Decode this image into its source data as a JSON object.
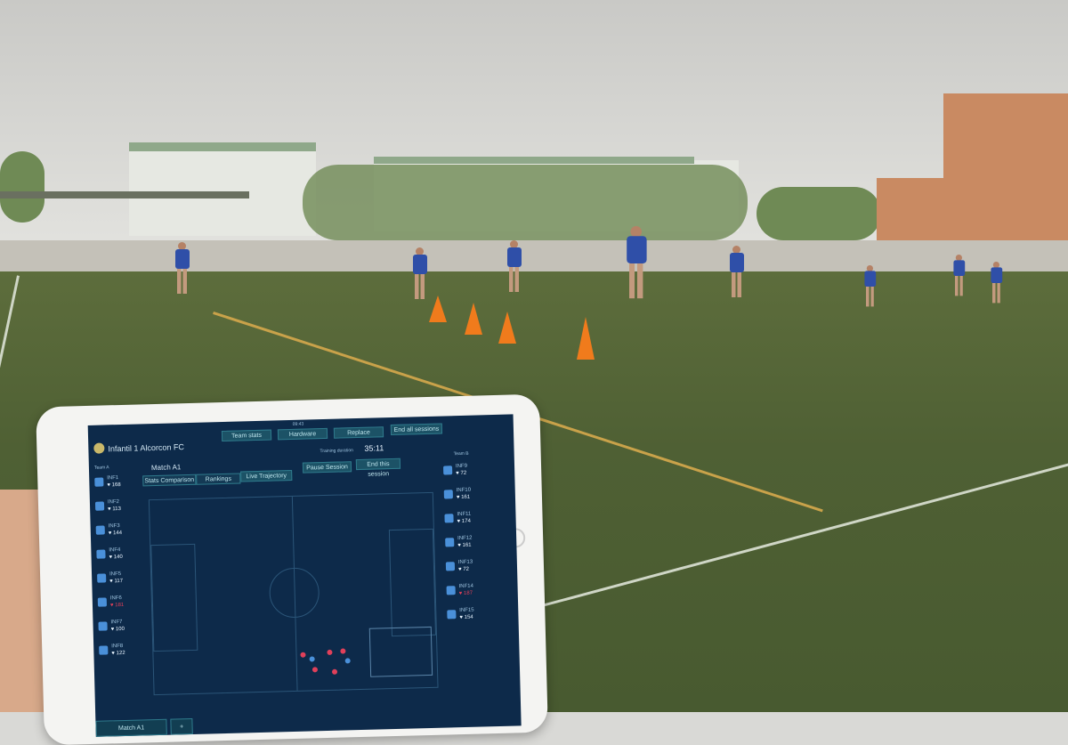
{
  "app": {
    "status_time": "09:43",
    "club": "Infantil 1 Alcorcon FC",
    "buttons": [
      "Team stats",
      "Hardware",
      "Replace",
      "End all sessions"
    ],
    "match": "Match A1",
    "duration_label": "Training duration",
    "duration": "35:11",
    "pause": "Pause Session",
    "end": "End this session",
    "tabs": [
      "Stats Comparison",
      "Rankings",
      "Live Trajectory"
    ],
    "team_a_label": "Team A",
    "team_b_label": "Team B",
    "team_a": [
      {
        "n": "INF1",
        "v": "♥ 168"
      },
      {
        "n": "INF2",
        "v": "♥ 113"
      },
      {
        "n": "INF3",
        "v": "♥ 144"
      },
      {
        "n": "INF4",
        "v": "♥ 140"
      },
      {
        "n": "INF5",
        "v": "♥ 117"
      },
      {
        "n": "INF6",
        "v": "♥ 181",
        "alert": true
      },
      {
        "n": "INF7",
        "v": "♥ 100"
      },
      {
        "n": "INF8",
        "v": "♥ 122"
      }
    ],
    "team_b": [
      {
        "n": "INF9",
        "v": "♥ 72"
      },
      {
        "n": "INF10",
        "v": "♥ 161"
      },
      {
        "n": "INF11",
        "v": "♥ 174"
      },
      {
        "n": "INF12",
        "v": "♥ 161"
      },
      {
        "n": "INF13",
        "v": "♥ 72"
      },
      {
        "n": "INF14",
        "v": "♥ 187",
        "alert": true
      },
      {
        "n": "INF15",
        "v": "♥ 154"
      }
    ],
    "bottom_tab": "Match A1",
    "add": "+"
  },
  "colors": {
    "screen": "#0d2a4a",
    "button": "#1c5266",
    "alert": "#e0405a",
    "field": "#4f6034",
    "cone": "#f07b1c"
  }
}
